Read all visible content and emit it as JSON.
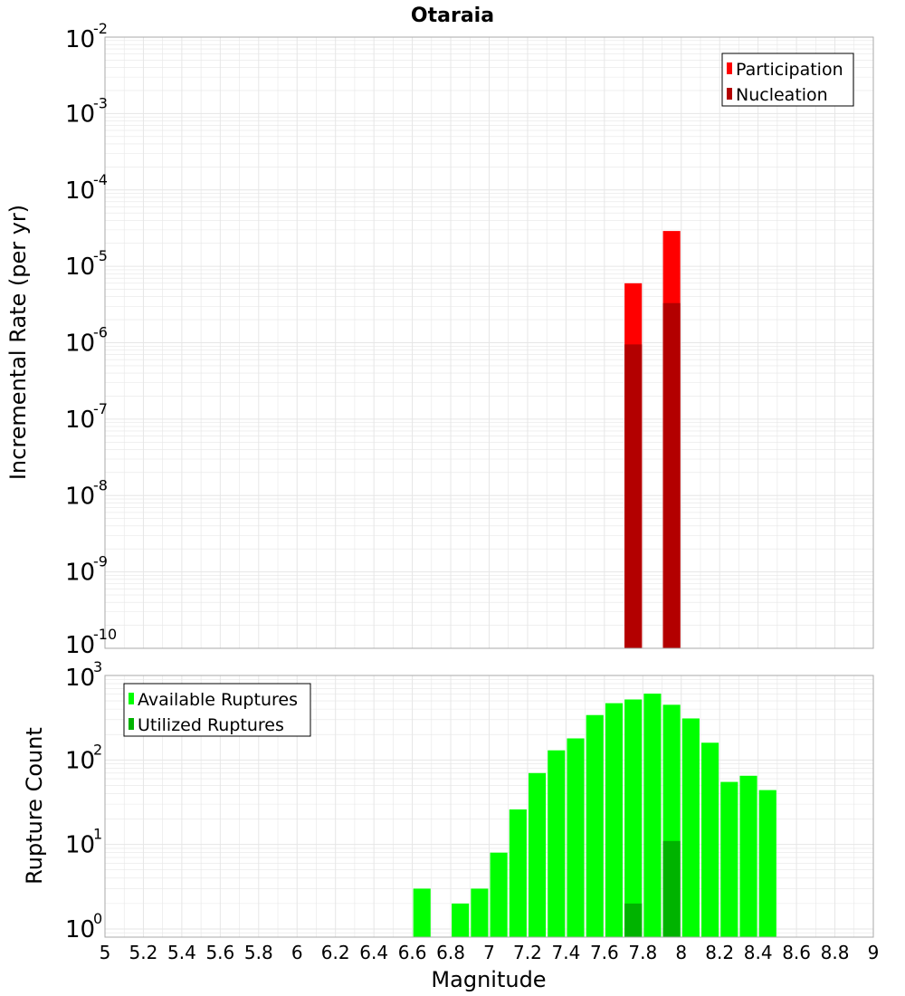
{
  "title": "Otaraia",
  "colors": {
    "participation": "#ff0000",
    "nucleation": "#b30000",
    "available": "#00ff00",
    "utilized": "#00b300",
    "grid": "#e6e6e6",
    "frame": "#aaaaaa"
  },
  "chart_data": [
    {
      "type": "bar",
      "name": "rates",
      "title": "Otaraia",
      "xlabel": "Magnitude",
      "ylabel": "Incremental Rate (per yr)",
      "y_scale": "log",
      "xlim": [
        5,
        9
      ],
      "ylim": [
        1e-10,
        0.01
      ],
      "y_tick_exponents": [
        "-2",
        "-3",
        "-4",
        "-5",
        "-6",
        "-7",
        "-8",
        "-9",
        "-10"
      ],
      "bar_width": 0.09,
      "legend": {
        "placement": "top-right",
        "entries": [
          "Participation",
          "Nucleation"
        ]
      },
      "series": [
        {
          "name": "Participation",
          "x": [
            7.75,
            7.95
          ],
          "values": [
            6e-06,
            2.9e-05
          ]
        },
        {
          "name": "Nucleation",
          "x": [
            7.75,
            7.95
          ],
          "values": [
            9.5e-07,
            3.3e-06
          ]
        }
      ]
    },
    {
      "type": "bar",
      "name": "ruptures",
      "xlabel": "Magnitude",
      "ylabel": "Rupture Count",
      "y_scale": "log",
      "xlim": [
        5,
        9
      ],
      "ylim": [
        0.8,
        1000
      ],
      "y_tick_exponents": [
        "3",
        "2",
        "1",
        "0"
      ],
      "x_ticks": [
        "5",
        "5.2",
        "5.4",
        "5.6",
        "5.8",
        "6",
        "6.2",
        "6.4",
        "6.6",
        "6.8",
        "7",
        "7.2",
        "7.4",
        "7.6",
        "7.8",
        "8",
        "8.2",
        "8.4",
        "8.6",
        "8.8",
        "9"
      ],
      "bar_width": 0.09,
      "legend": {
        "placement": "top-left",
        "entries": [
          "Available Ruptures",
          "Utilized Ruptures"
        ]
      },
      "series": [
        {
          "name": "Available Ruptures",
          "x": [
            6.65,
            6.85,
            6.95,
            7.05,
            7.15,
            7.25,
            7.35,
            7.45,
            7.55,
            7.65,
            7.75,
            7.85,
            7.95,
            8.05,
            8.15,
            8.25,
            8.35,
            8.45
          ],
          "values": [
            3,
            2,
            3,
            8,
            26,
            70,
            130,
            180,
            340,
            470,
            520,
            610,
            450,
            310,
            160,
            55,
            65,
            44
          ]
        },
        {
          "name": "Utilized Ruptures",
          "x": [
            7.75,
            7.95
          ],
          "values": [
            2,
            11
          ]
        }
      ]
    }
  ]
}
